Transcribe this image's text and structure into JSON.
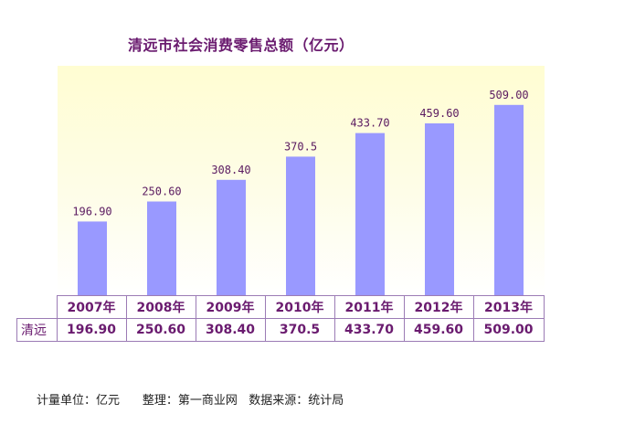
{
  "chart_data": {
    "type": "bar",
    "title": "清远市社会消费零售总额（亿元）",
    "categories": [
      "2007年",
      "2008年",
      "2009年",
      "2010年",
      "2011年",
      "2012年",
      "2013年"
    ],
    "series": [
      {
        "name": "清远",
        "values": [
          196.9,
          250.6,
          308.4,
          370.5,
          433.7,
          459.6,
          509.0
        ],
        "labels": [
          "196.90",
          "250.60",
          "308.40",
          "370.5",
          "433.70",
          "459.60",
          "509.00"
        ]
      }
    ],
    "ylim": [
      0,
      560
    ],
    "grid": false,
    "legend": "none",
    "data_table": true
  },
  "colors": {
    "bar": "#9999ff",
    "text": "#6a1b6f",
    "plot_background": "#fffdd2"
  },
  "footer": {
    "unit": "计量单位：亿元",
    "compiled": "整理：第一商业网",
    "source": "数据来源：统计局"
  }
}
